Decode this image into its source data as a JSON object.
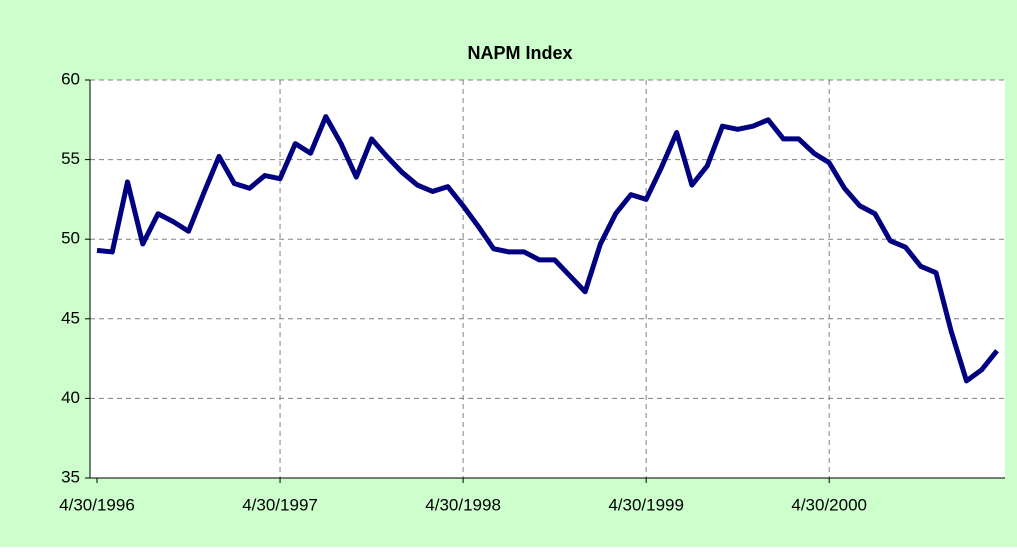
{
  "chart_data": {
    "type": "line",
    "title": "NAPM Index",
    "categories": [
      "4/30/1996",
      null,
      null,
      null,
      null,
      null,
      null,
      null,
      null,
      null,
      null,
      null,
      "4/30/1997",
      null,
      null,
      null,
      null,
      null,
      null,
      null,
      null,
      null,
      null,
      null,
      "4/30/1998",
      null,
      null,
      null,
      null,
      null,
      null,
      null,
      null,
      null,
      null,
      null,
      "4/30/1999",
      null,
      null,
      null,
      null,
      null,
      null,
      null,
      null,
      null,
      null,
      null,
      "4/30/2000",
      null,
      null,
      null,
      null,
      null,
      null,
      null,
      null,
      null,
      null,
      null
    ],
    "series": [
      {
        "name": "NAPM Index",
        "color": "#000080",
        "values": [
          49.3,
          49.2,
          53.6,
          49.7,
          51.6,
          51.1,
          50.5,
          52.9,
          55.2,
          53.5,
          53.2,
          54.0,
          53.8,
          56.0,
          55.4,
          57.7,
          56.0,
          53.9,
          56.3,
          55.2,
          54.2,
          53.4,
          53.0,
          53.3,
          52.1,
          50.8,
          49.4,
          49.2,
          49.2,
          48.7,
          48.7,
          47.7,
          46.7,
          49.7,
          51.6,
          52.8,
          52.5,
          54.5,
          56.7,
          53.4,
          54.6,
          57.1,
          56.9,
          57.1,
          57.5,
          56.3,
          56.3,
          55.4,
          54.8,
          53.2,
          52.1,
          51.6,
          49.9,
          49.5,
          48.3,
          47.9,
          44.2,
          41.1,
          41.8,
          43.0
        ]
      }
    ],
    "ylim": [
      35,
      60
    ],
    "yticks": [
      35,
      40,
      45,
      50,
      55,
      60
    ],
    "grid": true
  }
}
